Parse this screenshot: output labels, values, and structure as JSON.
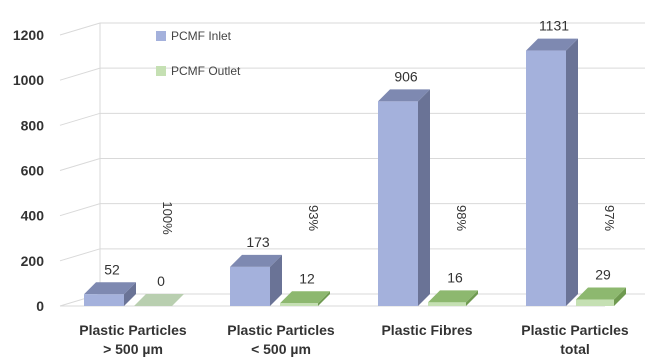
{
  "chart_data": {
    "type": "bar",
    "categories": [
      [
        "Plastic Particles",
        "> 500 µm"
      ],
      [
        "Plastic Particles",
        "< 500 µm"
      ],
      [
        "Plastic Fibres"
      ],
      [
        "Plastic Particles",
        "total"
      ]
    ],
    "series": [
      {
        "name": "PCMF Inlet",
        "values": [
          52,
          173,
          906,
          1131
        ],
        "labels": [
          "52",
          "173",
          "906",
          "1131"
        ]
      },
      {
        "name": "PCMF Outlet",
        "values": [
          0,
          12,
          16,
          29
        ],
        "labels": [
          "0",
          "12",
          "16",
          "29"
        ]
      }
    ],
    "annotations": [
      "100%",
      "93%",
      "98%",
      "97%"
    ],
    "yticks": [
      0,
      200,
      400,
      600,
      800,
      1000,
      1200
    ],
    "ylim": [
      0,
      1200
    ],
    "grid": true,
    "legend_position": "top-left",
    "colors": {
      "inlet_front": "#a4b1dc",
      "inlet_side": "#6a7396",
      "inlet_top": "#7e89b1",
      "outlet_front": "#c5e0b3",
      "outlet_side": "#6f9a50",
      "outlet_top": "#8db86f",
      "outlet_zero": "#b9cfb0"
    }
  }
}
